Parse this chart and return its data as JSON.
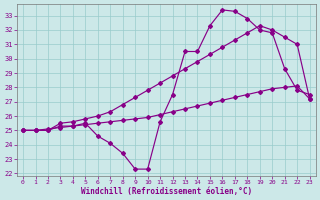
{
  "xlabel": "Windchill (Refroidissement éolien,°C)",
  "bg_color": "#cce8e8",
  "line_color": "#880088",
  "grid_color": "#99cccc",
  "xlim": [
    -0.5,
    23.5
  ],
  "ylim": [
    21.8,
    33.8
  ],
  "yticks": [
    22,
    23,
    24,
    25,
    26,
    27,
    28,
    29,
    30,
    31,
    32,
    33
  ],
  "xticks": [
    0,
    1,
    2,
    3,
    4,
    5,
    6,
    7,
    8,
    9,
    10,
    11,
    12,
    13,
    14,
    15,
    16,
    17,
    18,
    19,
    20,
    21,
    22,
    23
  ],
  "line1_x": [
    0,
    1,
    2,
    3,
    4,
    5,
    6,
    7,
    8,
    9,
    10,
    11,
    12,
    13,
    14,
    15,
    16,
    17,
    18,
    19,
    20,
    21,
    22,
    23
  ],
  "line1_y": [
    25.0,
    25.0,
    25.1,
    25.2,
    25.3,
    25.4,
    25.5,
    25.6,
    25.7,
    25.8,
    25.9,
    26.1,
    26.3,
    26.5,
    26.7,
    26.9,
    27.1,
    27.3,
    27.5,
    27.7,
    27.9,
    28.0,
    28.1,
    27.2
  ],
  "line2_x": [
    0,
    1,
    2,
    3,
    4,
    5,
    6,
    7,
    8,
    9,
    10,
    11,
    12,
    13,
    14,
    15,
    16,
    17,
    18,
    19,
    20,
    21,
    22,
    23
  ],
  "line2_y": [
    25.0,
    25.0,
    25.0,
    25.3,
    25.3,
    25.5,
    24.6,
    24.1,
    23.4,
    22.3,
    22.3,
    25.6,
    27.5,
    30.5,
    30.5,
    32.3,
    33.4,
    33.3,
    32.8,
    32.0,
    31.8,
    29.3,
    27.8,
    27.5
  ],
  "line3_x": [
    0,
    1,
    2,
    3,
    4,
    5,
    6,
    7,
    8,
    9,
    10,
    11,
    12,
    13,
    14,
    15,
    16,
    17,
    18,
    19,
    20,
    21,
    22,
    23
  ],
  "line3_y": [
    25.0,
    25.0,
    25.0,
    25.5,
    25.6,
    25.8,
    26.0,
    26.3,
    26.8,
    27.3,
    27.8,
    28.3,
    28.8,
    29.3,
    29.8,
    30.3,
    30.8,
    31.3,
    31.8,
    32.3,
    32.0,
    31.5,
    31.0,
    27.2
  ]
}
